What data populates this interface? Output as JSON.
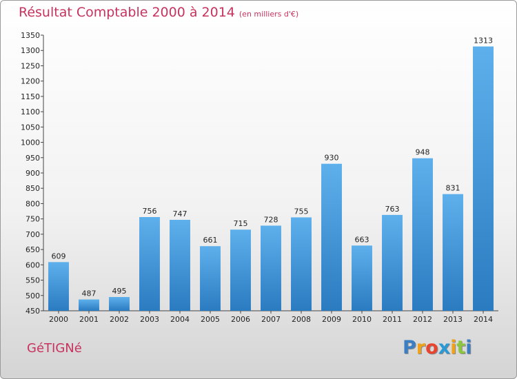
{
  "chart_data": {
    "type": "bar",
    "title": "Résultat Comptable 2000 à 2014",
    "subtitle": "(en milliers d'€)",
    "categories": [
      "2000",
      "2001",
      "2002",
      "2003",
      "2004",
      "2005",
      "2006",
      "2007",
      "2008",
      "2009",
      "2010",
      "2011",
      "2012",
      "2013",
      "2014"
    ],
    "values": [
      609,
      487,
      495,
      756,
      747,
      661,
      715,
      728,
      755,
      930,
      663,
      763,
      948,
      831,
      1313
    ],
    "ylim": [
      450,
      1350
    ],
    "yticks": [
      450,
      500,
      550,
      600,
      650,
      700,
      750,
      800,
      850,
      900,
      950,
      1000,
      1050,
      1100,
      1150,
      1200,
      1250,
      1300,
      1350
    ],
    "xlabel": "",
    "ylabel": "",
    "grid": false
  },
  "footer": {
    "commune": "GéTIGNé",
    "brand_letters": [
      "P",
      "r",
      "o",
      "x",
      "i",
      "t",
      "i"
    ]
  },
  "colors": {
    "bar_top": "#5eb0ec",
    "bar_bottom": "#2a7bc0",
    "title": "#c8325e",
    "brand": [
      "#3a7fc4",
      "#f0a21a",
      "#e8442f",
      "#2a9ad6",
      "#f0a21a",
      "#8cc63f",
      "#3a7fc4"
    ]
  }
}
